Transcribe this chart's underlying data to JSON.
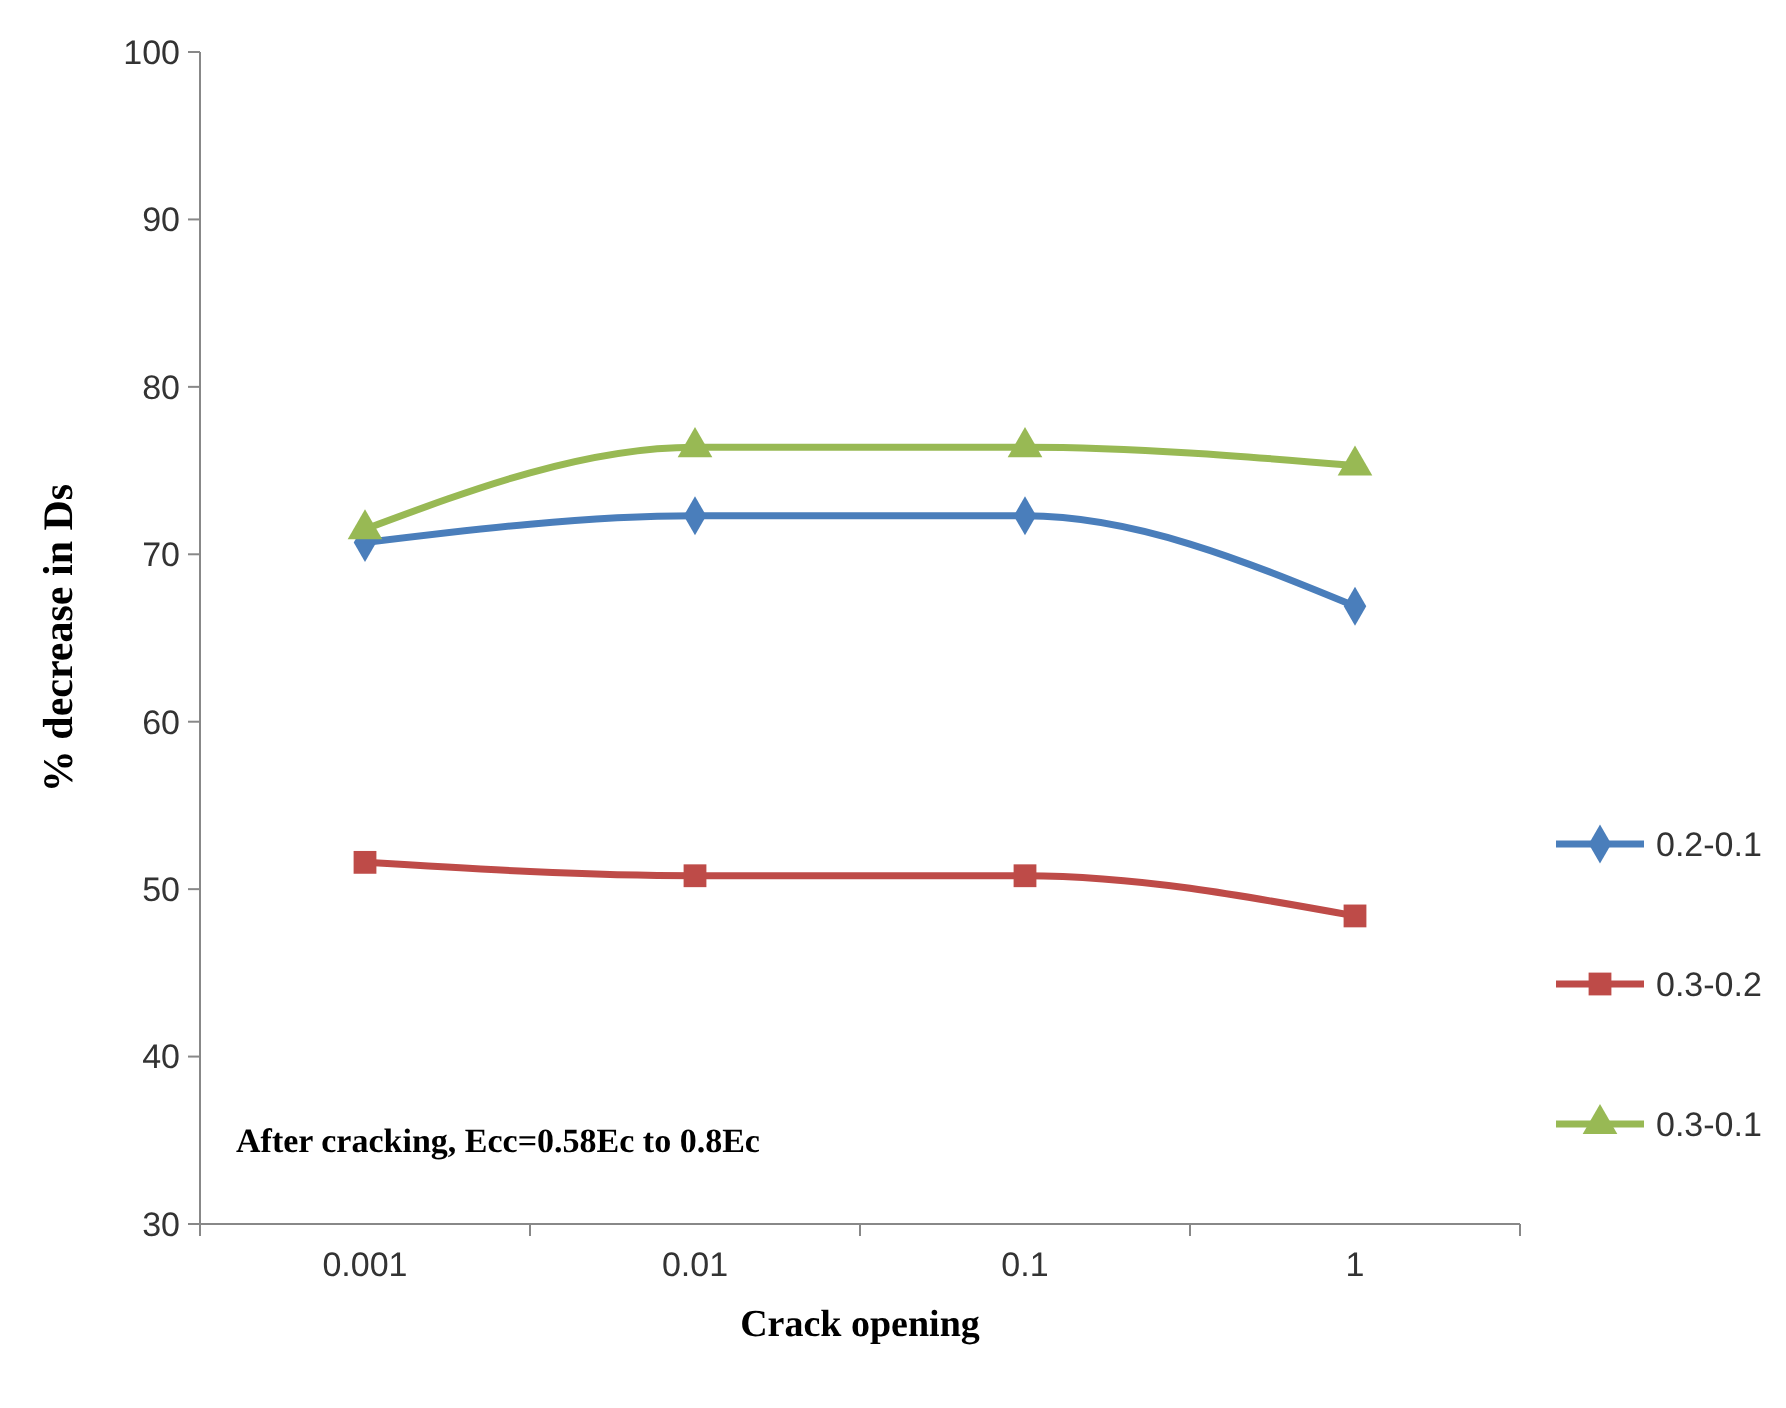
{
  "chart_data": {
    "type": "line",
    "xlabel": "Crack opening",
    "ylabel": "% decrease in Ds",
    "categories": [
      "0.001",
      "0.01",
      "0.1",
      "1"
    ],
    "ylim": [
      30,
      100
    ],
    "yticks": [
      30,
      40,
      50,
      60,
      70,
      80,
      90,
      100
    ],
    "grid": false,
    "legend": "right",
    "annotations": [
      "After cracking, Ecc=0.58Ec to 0.8Ec"
    ],
    "series": [
      {
        "name": "0.2-0.1",
        "color": "#4a7ebb",
        "marker": "diamond",
        "values": [
          70.7,
          72.3,
          72.3,
          66.9
        ]
      },
      {
        "name": "0.3-0.2",
        "color": "#be4b48",
        "marker": "square",
        "values": [
          51.6,
          50.8,
          50.8,
          48.4
        ]
      },
      {
        "name": "0.3-0.1",
        "color": "#98b954",
        "marker": "triangle",
        "values": [
          71.5,
          76.4,
          76.4,
          75.3
        ]
      }
    ]
  }
}
